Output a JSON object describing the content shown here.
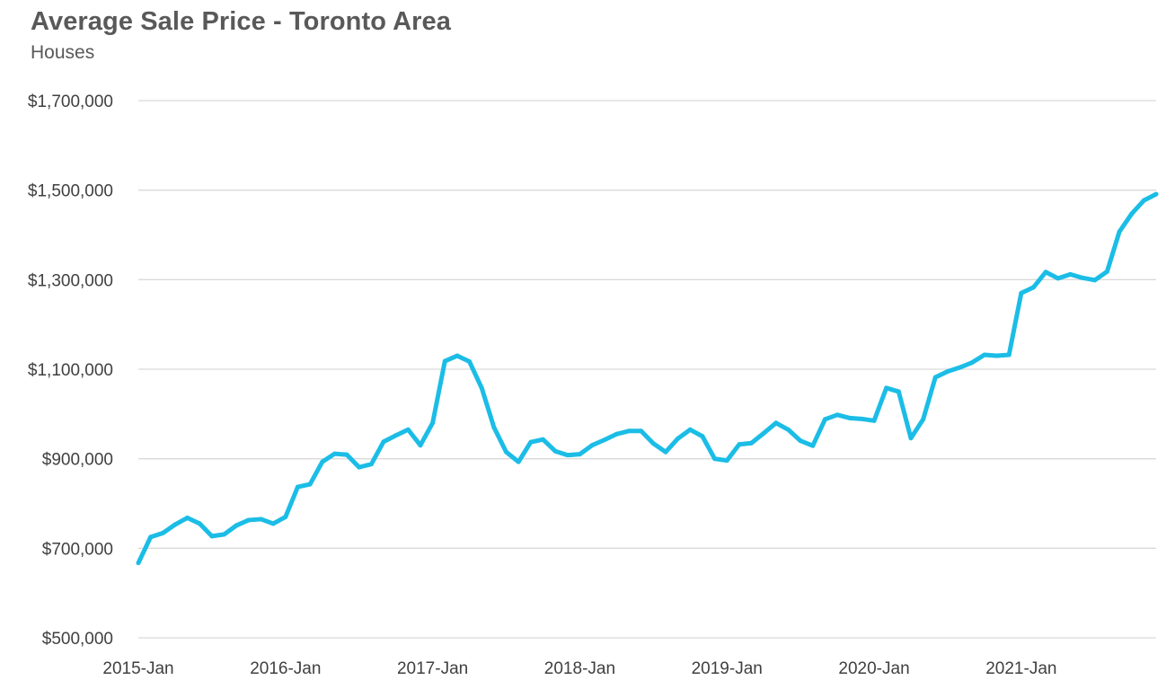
{
  "chart_data": {
    "type": "line",
    "title": "Average Sale Price - Toronto Area",
    "subtitle": "Houses",
    "xlabel": "",
    "ylabel": "",
    "ylim": [
      500000,
      1700000
    ],
    "y_ticks": [
      "$500,000",
      "$700,000",
      "$900,000",
      "$1,100,000",
      "$1,300,000",
      "$1,500,000",
      "$1,700,000"
    ],
    "x_ticks": [
      "2015-Jan",
      "2016-Jan",
      "2017-Jan",
      "2018-Jan",
      "2019-Jan",
      "2020-Jan",
      "2021-Jan"
    ],
    "grid": true,
    "legend": "none",
    "line_color": "#1BBDE6",
    "x": [
      "2015-Jan",
      "2015-Feb",
      "2015-Mar",
      "2015-Apr",
      "2015-May",
      "2015-Jun",
      "2015-Jul",
      "2015-Aug",
      "2015-Sep",
      "2015-Oct",
      "2015-Nov",
      "2015-Dec",
      "2016-Jan",
      "2016-Feb",
      "2016-Mar",
      "2016-Apr",
      "2016-May",
      "2016-Jun",
      "2016-Jul",
      "2016-Aug",
      "2016-Sep",
      "2016-Oct",
      "2016-Nov",
      "2016-Dec",
      "2017-Jan",
      "2017-Feb",
      "2017-Mar",
      "2017-Apr",
      "2017-May",
      "2017-Jun",
      "2017-Jul",
      "2017-Aug",
      "2017-Sep",
      "2017-Oct",
      "2017-Nov",
      "2017-Dec",
      "2018-Jan",
      "2018-Feb",
      "2018-Mar",
      "2018-Apr",
      "2018-May",
      "2018-Jun",
      "2018-Jul",
      "2018-Aug",
      "2018-Sep",
      "2018-Oct",
      "2018-Nov",
      "2018-Dec",
      "2019-Jan",
      "2019-Feb",
      "2019-Mar",
      "2019-Apr",
      "2019-May",
      "2019-Jun",
      "2019-Jul",
      "2019-Aug",
      "2019-Sep",
      "2019-Oct",
      "2019-Nov",
      "2019-Dec",
      "2020-Jan",
      "2020-Feb",
      "2020-Mar",
      "2020-Apr",
      "2020-May",
      "2020-Jun",
      "2020-Jul",
      "2020-Aug",
      "2020-Sep",
      "2020-Oct",
      "2020-Nov",
      "2020-Dec",
      "2021-Jan",
      "2021-Feb",
      "2021-Mar",
      "2021-Apr",
      "2021-May",
      "2021-Jun",
      "2021-Jul",
      "2021-Aug",
      "2021-Sep",
      "2021-Oct",
      "2021-Nov",
      "2021-Dec"
    ],
    "series": [
      {
        "values": [
          667000,
          725000,
          734000,
          753000,
          768000,
          755000,
          727000,
          731000,
          751000,
          763000,
          765000,
          755000,
          770000,
          837000,
          843000,
          893000,
          911000,
          909000,
          881000,
          888000,
          938000,
          952000,
          965000,
          930000,
          980000,
          1118000,
          1130000,
          1117000,
          1058000,
          970000,
          915000,
          893000,
          937000,
          943000,
          917000,
          908000,
          910000,
          930000,
          942000,
          955000,
          962000,
          962000,
          934000,
          915000,
          945000,
          965000,
          950000,
          900000,
          896000,
          932000,
          935000,
          957000,
          980000,
          965000,
          940000,
          929000,
          988000,
          998000,
          991000,
          989000,
          985000,
          1058000,
          1050000,
          946000,
          988000,
          1082000,
          1095000,
          1104000,
          1115000,
          1132000,
          1130000,
          1132000,
          1270000,
          1283000,
          1317000,
          1303000,
          1312000,
          1304000,
          1299000,
          1318000,
          1407000,
          1447000,
          1477000,
          1491000
        ]
      }
    ]
  }
}
